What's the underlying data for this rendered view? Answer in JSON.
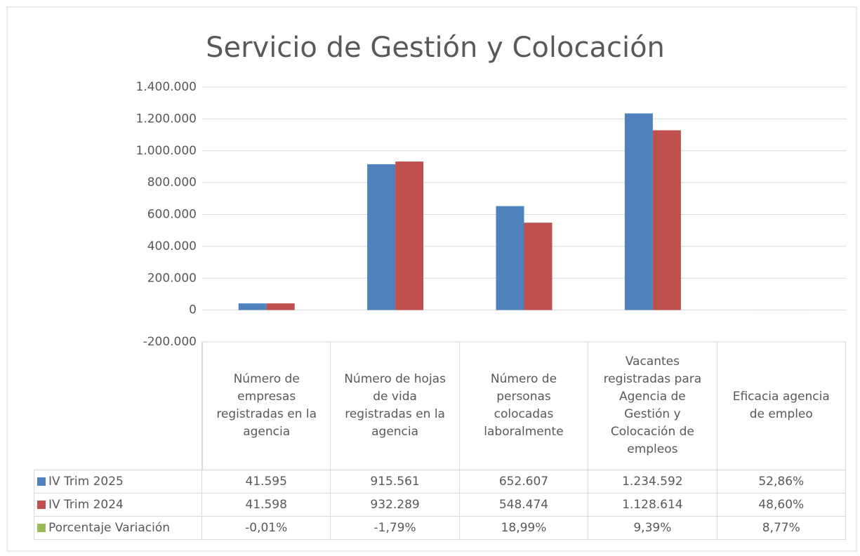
{
  "chart_data": {
    "type": "bar",
    "title": "Servicio de Gestión y Colocación",
    "categories": [
      "Número de empresas registradas en la agencia",
      "Número de hojas de vida registradas en la agencia",
      "Número de personas colocadas laboralmente",
      "Vacantes registradas para Agencia de Gestión y Colocación de empleos",
      "Eficacia agencia de empleo"
    ],
    "series": [
      {
        "name": "IV Trim 2025",
        "color": "#4f81bd",
        "values": [
          41595,
          915561,
          652607,
          1234592,
          52.86
        ],
        "value_labels": [
          "41.595",
          "915.561",
          "652.607",
          "1.234.592",
          "52,86%"
        ]
      },
      {
        "name": "IV Trim 2024",
        "color": "#c0504d",
        "values": [
          41598,
          932289,
          548474,
          1128614,
          48.6
        ],
        "value_labels": [
          "41.598",
          "932.289",
          "548.474",
          "1.128.614",
          "48,60%"
        ]
      },
      {
        "name": "Porcentaje Variación",
        "color": "#9bbb59",
        "values": [
          -0.01,
          -1.79,
          18.99,
          9.39,
          8.77
        ],
        "value_labels": [
          "-0,01%",
          "-1,79%",
          "18,99%",
          "9,39%",
          "8,77%"
        ]
      }
    ],
    "ylim": [
      -200000,
      1400000
    ],
    "yticks": [
      {
        "value": -200000,
        "label": "-200.000"
      },
      0,
      {
        "value": 200000,
        "label": "200.000"
      },
      {
        "value": 400000,
        "label": "400.000"
      },
      {
        "value": 600000,
        "label": "600.000"
      },
      {
        "value": 800000,
        "label": "800.000"
      },
      {
        "value": 1000000,
        "label": "1.000.000"
      },
      {
        "value": 1200000,
        "label": "1.200.000"
      },
      {
        "value": 1400000,
        "label": "1.400.000"
      }
    ],
    "grid": true
  }
}
